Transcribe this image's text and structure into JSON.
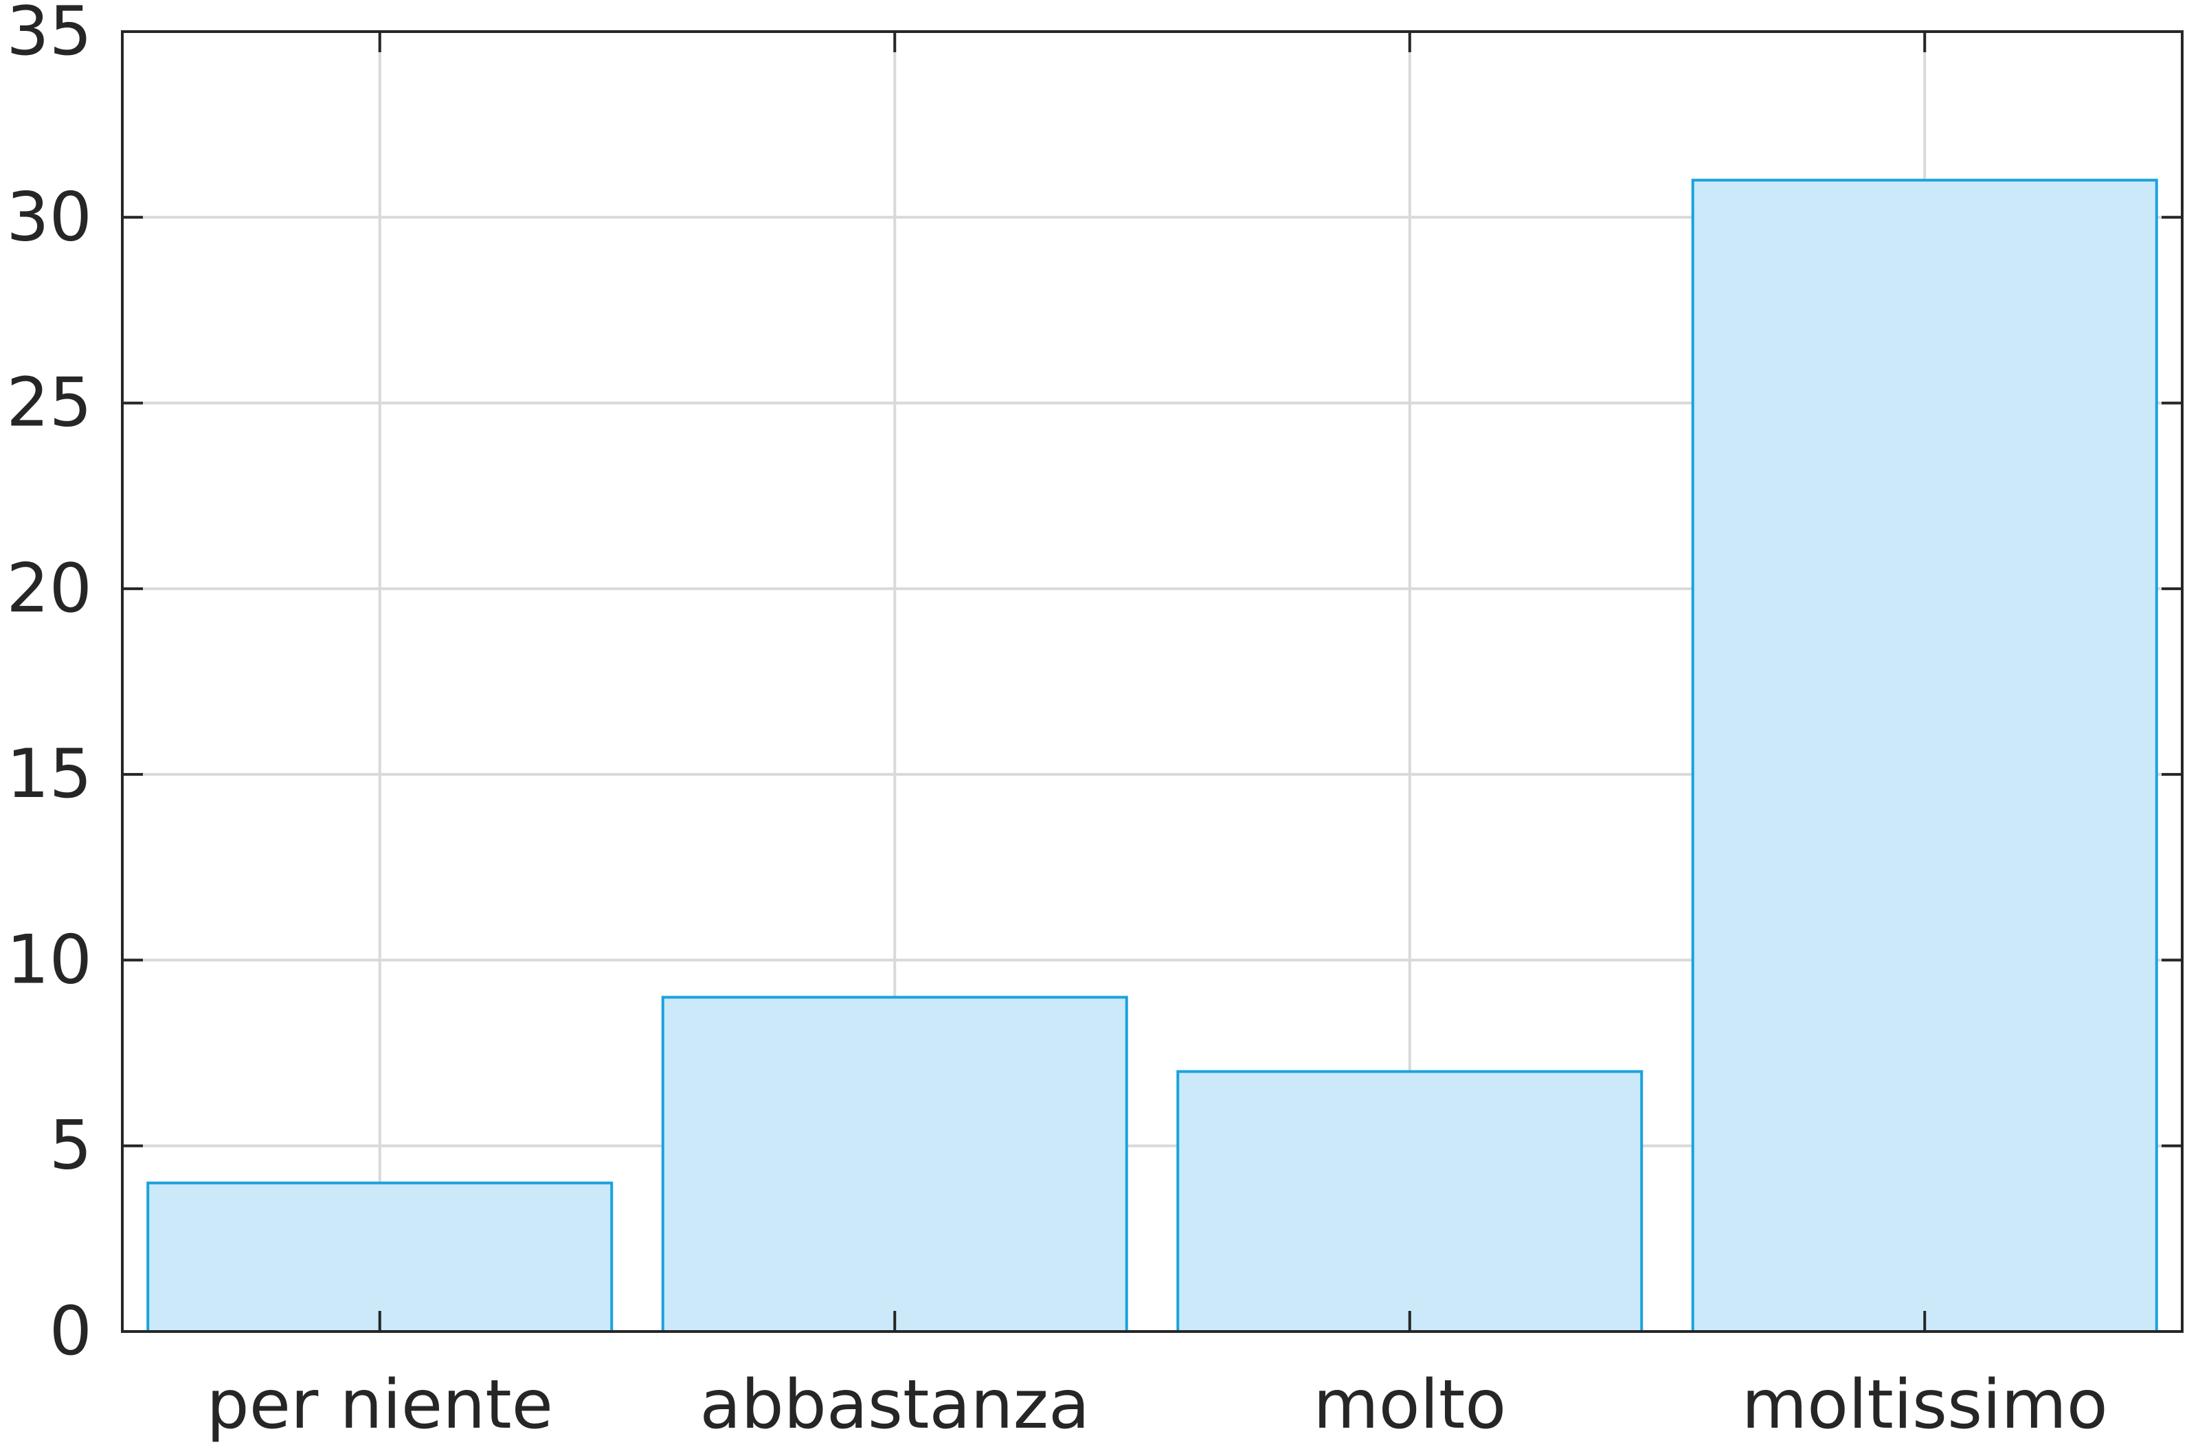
{
  "chart_data": {
    "type": "bar",
    "title": "",
    "xlabel": "",
    "ylabel": "",
    "categories": [
      "per niente",
      "abbastanza",
      "molto",
      "moltissimo"
    ],
    "values": [
      4,
      9,
      7,
      31
    ],
    "ylim": [
      0,
      35
    ],
    "yticks": [
      0,
      5,
      10,
      15,
      20,
      25,
      30,
      35
    ],
    "grid": true,
    "colors": {
      "bar_fill": "#cce9fa",
      "bar_edge": "#1aa3dd",
      "grid": "#d9d9d9",
      "axis": "#262626"
    }
  }
}
